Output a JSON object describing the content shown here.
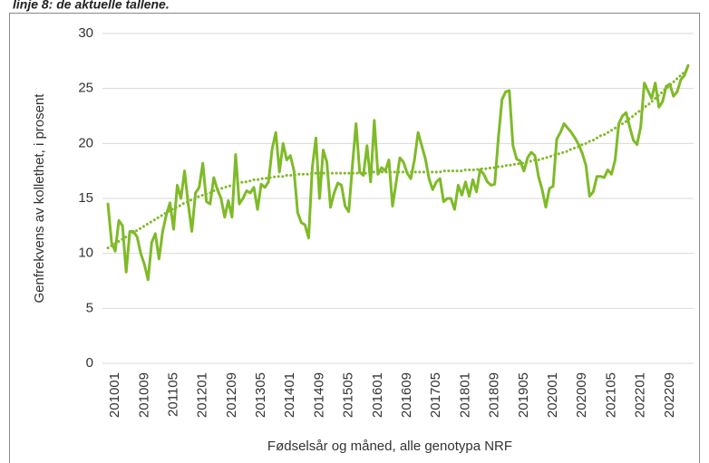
{
  "chart_data": {
    "type": "line",
    "title": "linje 8: de aktuelle tallene.",
    "y_label": "Genfrekvens av kollethet, i prosent",
    "x_label": "Fødselsår og måned, alle genotypa NRF",
    "categories": [
      null,
      null,
      null,
      "201001",
      null,
      null,
      null,
      null,
      null,
      null,
      null,
      "201009",
      null,
      null,
      null,
      null,
      null,
      null,
      null,
      "201105",
      null,
      null,
      null,
      null,
      null,
      null,
      null,
      "201201",
      null,
      null,
      null,
      null,
      null,
      null,
      null,
      "201209",
      null,
      null,
      null,
      null,
      null,
      null,
      null,
      "201305",
      null,
      null,
      null,
      null,
      null,
      null,
      null,
      "201401",
      null,
      null,
      null,
      null,
      null,
      null,
      null,
      "201409",
      null,
      null,
      null,
      null,
      null,
      null,
      null,
      "201505",
      null,
      null,
      null,
      null,
      null,
      null,
      null,
      "201601",
      null,
      null,
      null,
      null,
      null,
      null,
      null,
      "201609",
      null,
      null,
      null,
      null,
      null,
      null,
      null,
      "201705",
      null,
      null,
      null,
      null,
      null,
      null,
      null,
      "201801",
      null,
      null,
      null,
      null,
      null,
      null,
      null,
      "201809",
      null,
      null,
      null,
      null,
      null,
      null,
      null,
      "201905",
      null,
      null,
      null,
      null,
      null,
      null,
      null,
      "202001",
      null,
      null,
      null,
      null,
      null,
      null,
      null,
      "202009",
      null,
      null,
      null,
      null,
      null,
      null,
      null,
      "202105",
      null,
      null,
      null,
      null,
      null,
      null,
      null,
      "202201",
      null,
      null,
      null,
      null,
      null,
      null,
      null,
      "202209",
      null,
      null,
      null,
      null,
      null,
      null
    ],
    "series": [
      {
        "color": "#7fba28",
        "dash": "solid",
        "values": [
          null,
          14.5,
          11,
          10.2,
          13,
          12.5,
          8.3,
          12,
          12,
          11.5,
          10,
          9,
          7.6,
          11,
          11.8,
          9.5,
          12,
          13.5,
          14.6,
          12.2,
          16.2,
          15,
          17.5,
          14.5,
          12,
          15.5,
          16,
          18.2,
          14.7,
          14.5,
          16.9,
          15.8,
          15,
          13.3,
          14.8,
          13.3,
          19,
          14.5,
          15,
          15.7,
          15.5,
          16,
          14,
          16.3,
          16,
          16.5,
          19.5,
          21,
          17.4,
          20,
          18.5,
          18.9,
          17.5,
          13.7,
          12.8,
          12.6,
          11.4,
          17.8,
          20.5,
          15,
          19.4,
          18.3,
          14.2,
          15.5,
          16.4,
          16.2,
          14.3,
          13.8,
          18,
          21.8,
          17.4,
          17.1,
          19.8,
          16.5,
          22.1,
          17.2,
          17.8,
          17.5,
          18.5,
          14.3,
          16.5,
          18.7,
          18.3,
          17.3,
          16.8,
          18.5,
          21,
          19.8,
          18.6,
          16.8,
          15.8,
          16.5,
          16.8,
          14.7,
          15,
          15,
          14,
          16.2,
          15.3,
          16.5,
          15.2,
          16.7,
          15.6,
          17.6,
          17.2,
          16.5,
          16.2,
          16.3,
          20.5,
          24,
          24.7,
          24.8,
          19.8,
          18.6,
          18.4,
          17.5,
          18.7,
          19.2,
          18.9,
          17,
          15.8,
          14.2,
          15.9,
          16.1,
          20.4,
          21,
          21.8,
          21.4,
          21,
          20.5,
          19.9,
          19.1,
          18,
          15.2,
          15.6,
          17,
          17,
          16.9,
          17.6,
          17.2,
          18.5,
          21.8,
          22.5,
          22.8,
          21.5,
          20.3,
          19.9,
          21.5,
          25.5,
          24.8,
          24.1,
          25.5,
          23.3,
          23.8,
          25.2,
          25.4,
          24.3,
          24.7,
          25.8,
          26.2,
          27.1,
          null
        ]
      },
      {
        "color": "#7fba28",
        "dash": "dotted",
        "values": [
          null,
          10.5,
          10.7,
          10.9,
          11.1,
          11.3,
          11.5,
          11.7,
          11.9,
          12.1,
          12.3,
          12.5,
          12.7,
          12.9,
          13.1,
          13.3,
          13.5,
          13.7,
          13.9,
          14.1,
          14.2,
          14.4,
          14.6,
          14.7,
          14.9,
          15.0,
          15.2,
          15.3,
          15.4,
          15.5,
          15.7,
          15.8,
          15.9,
          16.0,
          16.1,
          16.2,
          16.3,
          16.4,
          16.5,
          16.5,
          16.6,
          16.7,
          16.7,
          16.8,
          16.8,
          16.9,
          16.9,
          17.0,
          17.0,
          17.0,
          17.1,
          17.1,
          17.1,
          17.2,
          17.2,
          17.2,
          17.2,
          17.3,
          17.3,
          17.3,
          17.3,
          17.3,
          17.3,
          17.3,
          17.3,
          17.3,
          17.3,
          17.3,
          17.3,
          17.3,
          17.3,
          17.3,
          17.3,
          17.4,
          17.4,
          17.4,
          17.4,
          17.4,
          17.4,
          17.4,
          17.4,
          17.4,
          17.4,
          17.4,
          17.4,
          17.4,
          17.4,
          17.4,
          17.4,
          17.4,
          17.4,
          17.4,
          17.4,
          17.5,
          17.5,
          17.5,
          17.5,
          17.5,
          17.5,
          17.6,
          17.6,
          17.6,
          17.6,
          17.7,
          17.7,
          17.7,
          17.8,
          17.8,
          17.9,
          17.9,
          18.0,
          18.0,
          18.1,
          18.1,
          18.2,
          18.2,
          18.3,
          18.4,
          18.5,
          18.5,
          18.6,
          18.7,
          18.8,
          18.9,
          19.0,
          19.1,
          19.2,
          19.3,
          19.5,
          19.6,
          19.7,
          19.9,
          20.0,
          20.2,
          20.3,
          20.5,
          20.7,
          20.8,
          21.0,
          21.2,
          21.4,
          21.6,
          21.8,
          22.0,
          22.3,
          22.5,
          22.8,
          23.0,
          23.3,
          23.5,
          23.8,
          24.1,
          24.4,
          24.7,
          25.0,
          25.3,
          25.6,
          25.9,
          26.2,
          26.5,
          26.8,
          null
        ]
      }
    ],
    "ylim": [
      0,
      30
    ],
    "yticks": [
      0,
      5,
      10,
      15,
      20,
      25,
      30
    ],
    "grid": true
  }
}
